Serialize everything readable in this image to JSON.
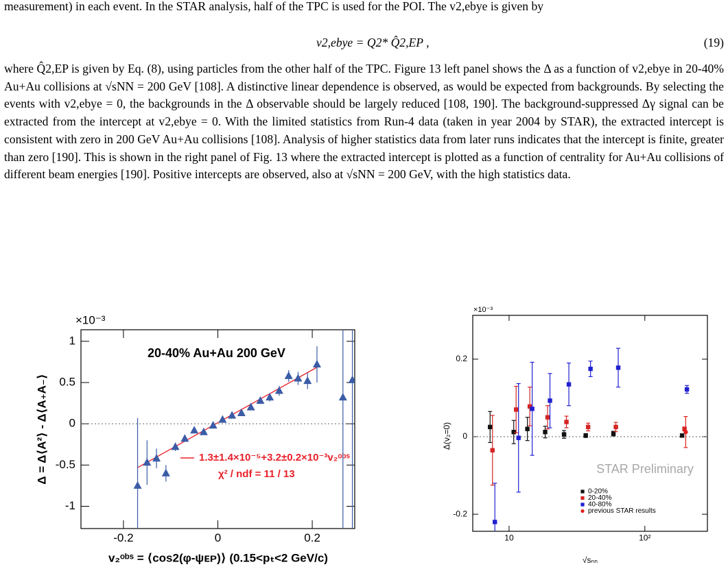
{
  "paragraph_1": "measurement) in each event. In the STAR analysis, half of the TPC is used for the POI. The v2,ebye is given by",
  "equation": "v2,ebye = Q2* Q̂2,EP ,",
  "equation_number": "(19)",
  "paragraph_2": "where Q̂2,EP is given by Eq. (8), using particles from the other half of the TPC. Figure 13 left panel shows the Δ as a function of v2,ebye in 20-40% Au+Au collisions at √sNN = 200 GeV [108]. A distinctive linear dependence is observed, as would be expected from backgrounds. By selecting the events with v2,ebye = 0, the backgrounds in the Δ observable should be largely reduced [108, 190]. The background-suppressed Δγ signal can be extracted from the intercept at v2,ebye = 0. With the limited statistics from Run-4 data (taken in year 2004 by STAR), the extracted intercept is consistent with zero in 200 GeV Au+Au collisions [108]. Analysis of higher statistics data from later runs indicates that the intercept is finite, greater than zero [190]. This is shown in the right panel of Fig. 13 where the extracted intercept is plotted as a function of centrality for Au+Au collisions of different beam energies [190]. Positive intercepts are observed, also at √sNN = 200 GeV, with the high statistics data.",
  "chart_data": [
    {
      "type": "scatter",
      "multiplier": "×10⁻³",
      "annotation": "20-40% Au+Au 200 GeV",
      "x_label": "v₂ᵒᵇˢ = ⟨cos2(φ-ψᴇᴘ)⟩ (0.15<pₜ<2 GeV/c)",
      "y_label": "Δ = Δ⟨A²⟩ - Δ⟨A₊A₋⟩",
      "x": [
        -0.17,
        -0.15,
        -0.13,
        -0.11,
        -0.09,
        -0.07,
        -0.05,
        -0.03,
        -0.01,
        0.01,
        0.03,
        0.05,
        0.07,
        0.09,
        0.11,
        0.13,
        0.15,
        0.17,
        0.19,
        0.21,
        0.265,
        0.285
      ],
      "values": [
        -0.75,
        -0.47,
        -0.42,
        -0.6,
        -0.28,
        -0.18,
        -0.08,
        -0.1,
        -0.02,
        0.05,
        0.1,
        0.13,
        0.2,
        0.28,
        0.32,
        0.4,
        0.58,
        0.55,
        0.52,
        0.72,
        0.32,
        0.53
      ],
      "errors": [
        0.82,
        0.27,
        0.12,
        0.1,
        0.05,
        0.04,
        0.03,
        0.03,
        0.02,
        0.02,
        0.03,
        0.03,
        0.03,
        0.04,
        0.05,
        0.06,
        0.07,
        0.08,
        0.1,
        0.22,
        2,
        2
      ],
      "color": "#3b5ca6",
      "marker": "triangle",
      "fit": {
        "label": "1.3±1.4×10⁻⁵+3.2±0.2×10⁻³v₂ᵒᵇˢ",
        "chi2": "χ² / ndf = 11 / 13",
        "intercept": 0.013,
        "slope": 3.2,
        "x": [
          -0.17,
          0.21
        ],
        "color": "#e8202a"
      },
      "xlim": [
        -0.29,
        0.29
      ],
      "ylim": [
        -1.27,
        1.14
      ],
      "xticks": [
        -0.2,
        0,
        0.2
      ],
      "yticks": [
        -1,
        -0.5,
        0,
        0.5,
        1
      ],
      "zero_line": true
    },
    {
      "type": "scatter",
      "multiplier": "×10⁻³",
      "annotation": "STAR Preliminary",
      "x_label": "√sₙₙ",
      "y_label": "Δ(v₂=0)",
      "log_x": true,
      "x": [
        7.7,
        11.5,
        14.5,
        19.6,
        27,
        39,
        62.4,
        200
      ],
      "series": [
        {
          "name": "0-20%",
          "color": "#111111",
          "marker": "square",
          "values": [
            0.025,
            0.012,
            0.02,
            0.012,
            0.006,
            0.003,
            0.008,
            0.003
          ],
          "errors": [
            0.04,
            0.03,
            0.03,
            0.015,
            0.01,
            0.005,
            0.006,
            0.004
          ]
        },
        {
          "name": "20-40%",
          "color": "#d42424",
          "marker": "square",
          "values": [
            -0.035,
            0.07,
            0.078,
            0.05,
            0.038,
            0.025,
            0.025,
            0.02
          ],
          "errors": [
            0.09,
            0.06,
            0.05,
            0.03,
            0.015,
            0.01,
            0.012,
            0.005
          ]
        },
        {
          "name": "40-80%",
          "color": "#2020d0",
          "marker": "square",
          "values": [
            -0.22,
            -0.003,
            0.072,
            0.093,
            0.135,
            0.175,
            0.178,
            0.122
          ],
          "errors": [
            0.1,
            0.14,
            0.12,
            0.07,
            0.055,
            0.02,
            0.05,
            0.01
          ]
        },
        {
          "name": "previous STAR results",
          "color": "#e02020",
          "marker": "circle",
          "values": [
            null,
            null,
            null,
            null,
            null,
            null,
            null,
            0.012
          ],
          "errors": [
            null,
            null,
            null,
            null,
            null,
            null,
            null,
            0.04
          ]
        }
      ],
      "xlim": [
        5.4,
        289
      ],
      "ylim": [
        -0.244,
        0.313
      ],
      "xticks": [
        10,
        {
          "value": 100,
          "label": "10²"
        }
      ],
      "yticks": [
        -0.2,
        0,
        0.2
      ],
      "zero_line": true,
      "legend": "lower right"
    }
  ]
}
